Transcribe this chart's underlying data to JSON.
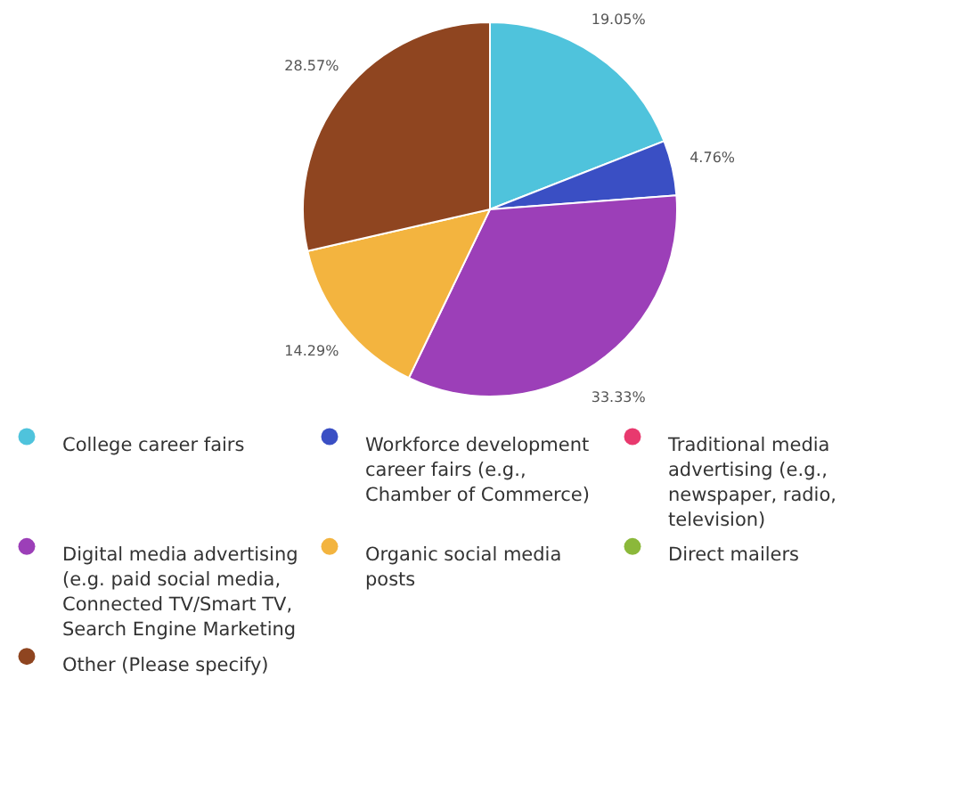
{
  "chart_data": {
    "type": "pie",
    "categories": [
      "College career fairs",
      "Workforce development career fairs (e.g., Chamber of Commerce)",
      "Traditional media advertising (e.g., newspaper, radio, television)",
      "Digital media advertising (e.g. paid social media, Connected TV/Smart TV, Search Engine Marketing",
      "Organic social media posts",
      "Direct mailers",
      "Other (Please specify)"
    ],
    "values": [
      19.05,
      4.76,
      0,
      33.33,
      14.29,
      0,
      28.57
    ],
    "value_labels": [
      "19.05%",
      "4.76%",
      null,
      "33.33%",
      "14.29%",
      null,
      "28.57%"
    ],
    "colors": [
      "#4fc3dc",
      "#3a4fc4",
      "#e8396e",
      "#9c3fb8",
      "#f3b43f",
      "#8bb83a",
      "#8f4520"
    ],
    "legend": "bottom"
  }
}
